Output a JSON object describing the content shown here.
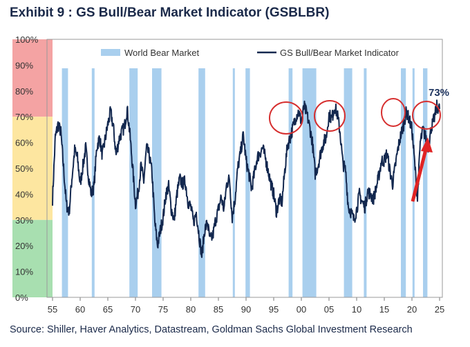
{
  "title": "Exhibit 9 : GS Bull/Bear Market Indicator (GSBLBR)",
  "source": "Source: Shiller, Haver Analytics, Datastream, Goldman Sachs Global Investment Research",
  "chart_data": {
    "type": "line",
    "title": "Exhibit 9 : GS Bull/Bear Market Indicator (GSBLBR)",
    "xlabel": "",
    "ylabel": "",
    "xlim": [
      1955,
      2025
    ],
    "ylim": [
      0,
      100
    ],
    "grid": false,
    "legend_position": "top",
    "x_ticks": [
      "55",
      "60",
      "65",
      "70",
      "75",
      "80",
      "85",
      "90",
      "95",
      "00",
      "05",
      "10",
      "15",
      "20",
      "25"
    ],
    "y_ticks": [
      "0%",
      "10%",
      "20%",
      "30%",
      "40%",
      "50%",
      "60%",
      "70%",
      "80%",
      "90%",
      "100%"
    ],
    "legend": [
      "World Bear Market",
      "GS Bull/Bear Market Indicator"
    ],
    "zones": [
      {
        "from": 70,
        "to": 100,
        "color": "#f4a3a3"
      },
      {
        "from": 30,
        "to": 70,
        "color": "#fde6a0"
      },
      {
        "from": 0,
        "to": 30,
        "color": "#a8dfb0"
      }
    ],
    "bear_markets": [
      [
        1956.7,
        1957.8
      ],
      [
        1962.1,
        1962.6
      ],
      [
        1968.9,
        1970.4
      ],
      [
        1973.0,
        1974.7
      ],
      [
        1981.4,
        1982.6
      ],
      [
        1987.6,
        1987.9
      ],
      [
        1989.9,
        1990.7
      ],
      [
        1997.7,
        1998.4
      ],
      [
        2000.2,
        2002.7
      ],
      [
        2007.7,
        2009.2
      ],
      [
        2011.3,
        2011.8
      ],
      [
        2018.0,
        2018.9
      ],
      [
        2020.1,
        2020.3
      ],
      [
        2022.0,
        2022.8
      ]
    ],
    "series": [
      {
        "name": "GS Bull/Bear Market Indicator",
        "color": "#13284f",
        "x": [
          1955.0,
          1955.5,
          1956.0,
          1956.5,
          1957.0,
          1957.5,
          1958.0,
          1958.5,
          1959.0,
          1959.5,
          1960.0,
          1960.5,
          1961.0,
          1961.5,
          1962.0,
          1962.5,
          1963.0,
          1963.5,
          1964.0,
          1964.5,
          1965.0,
          1965.5,
          1966.0,
          1966.5,
          1967.0,
          1967.5,
          1968.0,
          1968.5,
          1969.0,
          1969.5,
          1970.0,
          1970.5,
          1971.0,
          1971.5,
          1972.0,
          1972.5,
          1973.0,
          1973.5,
          1974.0,
          1974.5,
          1975.0,
          1975.5,
          1976.0,
          1976.5,
          1977.0,
          1977.5,
          1978.0,
          1978.5,
          1979.0,
          1979.5,
          1980.0,
          1980.5,
          1981.0,
          1981.5,
          1982.0,
          1982.5,
          1983.0,
          1983.5,
          1984.0,
          1984.5,
          1985.0,
          1985.5,
          1986.0,
          1986.5,
          1987.0,
          1987.5,
          1988.0,
          1988.5,
          1989.0,
          1989.5,
          1990.0,
          1990.5,
          1991.0,
          1991.5,
          1992.0,
          1992.5,
          1993.0,
          1993.5,
          1994.0,
          1994.5,
          1995.0,
          1995.5,
          1996.0,
          1996.5,
          1997.0,
          1997.5,
          1998.0,
          1998.5,
          1999.0,
          1999.5,
          2000.0,
          2000.5,
          2001.0,
          2001.5,
          2002.0,
          2002.5,
          2003.0,
          2003.5,
          2004.0,
          2004.5,
          2005.0,
          2005.5,
          2006.0,
          2006.5,
          2007.0,
          2007.5,
          2008.0,
          2008.5,
          2009.0,
          2009.5,
          2010.0,
          2010.5,
          2011.0,
          2011.5,
          2012.0,
          2012.5,
          2013.0,
          2013.5,
          2014.0,
          2014.5,
          2015.0,
          2015.5,
          2016.0,
          2016.5,
          2017.0,
          2017.5,
          2018.0,
          2018.5,
          2019.0,
          2019.5,
          2020.0,
          2020.5,
          2021.0,
          2021.5,
          2022.0,
          2022.5,
          2023.0,
          2023.5,
          2024.0,
          2024.5,
          2025.0
        ],
        "values": [
          38,
          62,
          67,
          64,
          50,
          36,
          33,
          46,
          57,
          54,
          44,
          51,
          58,
          47,
          40,
          43,
          58,
          62,
          55,
          61,
          67,
          72,
          66,
          55,
          61,
          64,
          66,
          73,
          63,
          50,
          36,
          41,
          51,
          45,
          58,
          55,
          48,
          29,
          20,
          26,
          31,
          40,
          43,
          34,
          30,
          40,
          46,
          44,
          45,
          37,
          35,
          29,
          33,
          24,
          16,
          26,
          29,
          22,
          24,
          30,
          34,
          39,
          34,
          44,
          46,
          31,
          38,
          50,
          56,
          63,
          53,
          48,
          42,
          48,
          54,
          56,
          58,
          54,
          49,
          44,
          40,
          33,
          38,
          37,
          49,
          59,
          62,
          66,
          70,
          72,
          68,
          74,
          71,
          66,
          60,
          48,
          51,
          56,
          60,
          62,
          71,
          69,
          74,
          71,
          64,
          52,
          49,
          35,
          33,
          30,
          34,
          40,
          37,
          35,
          41,
          40,
          38,
          42,
          47,
          53,
          53,
          56,
          49,
          44,
          51,
          58,
          63,
          67,
          72,
          69,
          65,
          52,
          38,
          60,
          65,
          62,
          58,
          66,
          69,
          74,
          73
        ]
      }
    ],
    "annotations": [
      "73%"
    ]
  }
}
